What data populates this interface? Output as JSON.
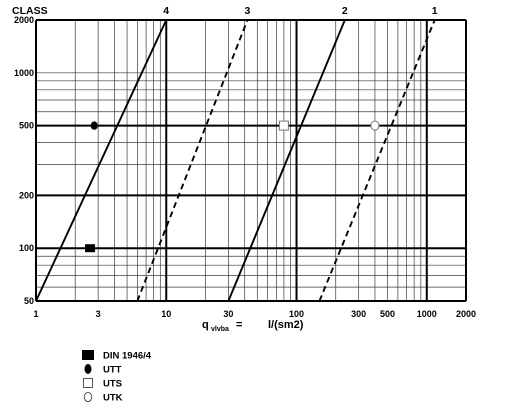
{
  "chart_data": {
    "type": "line",
    "title": "",
    "x_scale": "log",
    "y_scale": "log",
    "xlim": [
      1,
      2000
    ],
    "ylim": [
      50,
      2000
    ],
    "x_ticks": [
      1,
      3,
      10,
      30,
      100,
      300,
      500,
      1000,
      2000
    ],
    "y_ticks": [
      50,
      100,
      200,
      500,
      1000,
      2000
    ],
    "x_tick_labels": [
      "1",
      "3",
      "10",
      "30",
      "100",
      "300",
      "500",
      "1000",
      "2000"
    ],
    "y_tick_labels": [
      "50",
      "100",
      "200",
      "500",
      "1000",
      "2000"
    ],
    "class_header": "CLASS",
    "xlabel": {
      "q": "q",
      "sub": "vlvba",
      "eq": "=",
      "unit": "l/(sm2)"
    },
    "grid": true,
    "series": [
      {
        "name": "4",
        "style": "solid",
        "points": [
          [
            1.0,
            50
          ],
          [
            10.0,
            2000
          ]
        ]
      },
      {
        "name": "3",
        "style": "dashed",
        "points": [
          [
            6.0,
            50
          ],
          [
            42.0,
            2000
          ]
        ]
      },
      {
        "name": "2",
        "style": "solid",
        "points": [
          [
            30.0,
            50
          ],
          [
            235.0,
            2000
          ]
        ]
      },
      {
        "name": "1",
        "style": "dashed",
        "points": [
          [
            150.0,
            50
          ],
          [
            1150.0,
            2000
          ]
        ]
      }
    ],
    "markers": [
      {
        "name": "DIN 1946/4",
        "symbol": "filled-square",
        "x": 2.6,
        "y": 100
      },
      {
        "name": "UTT",
        "symbol": "filled-circle",
        "x": 2.8,
        "y": 500
      },
      {
        "name": "UTS",
        "symbol": "open-square",
        "x": 80,
        "y": 500
      },
      {
        "name": "UTK",
        "symbol": "open-circle",
        "x": 400,
        "y": 500
      }
    ],
    "legend_position": "bottom-left"
  }
}
